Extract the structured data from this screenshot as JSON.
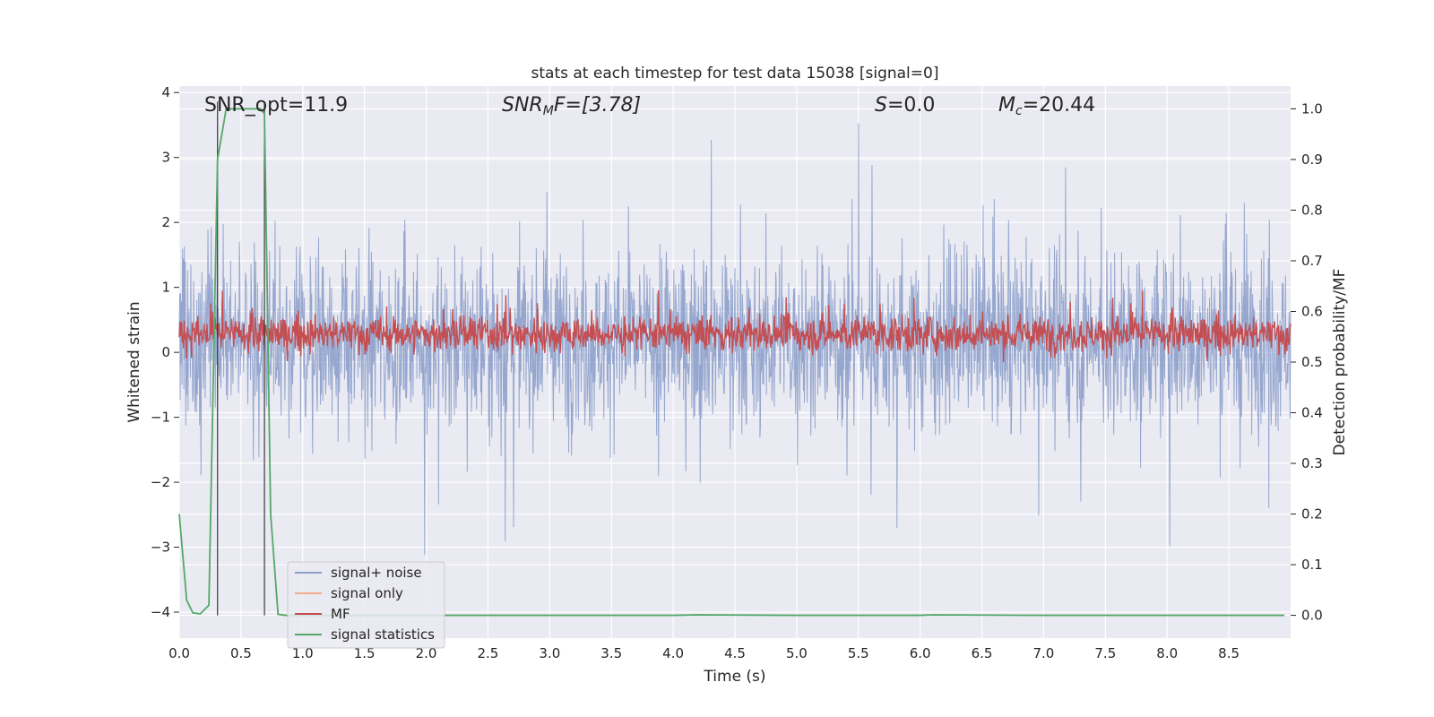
{
  "chart_data": {
    "type": "line",
    "title": "stats at each timestep for test data 15038 [signal=0]",
    "xlabel": "Time (s)",
    "ylabel": "Whitened strain",
    "y2label": "Detection probability/MF",
    "xlim": [
      0.0,
      9.0
    ],
    "ylim": [
      -4.4,
      4.1
    ],
    "y2lim": [
      -0.045,
      1.045
    ],
    "xticks": [
      "0.0",
      "0.5",
      "1.0",
      "1.5",
      "2.0",
      "2.5",
      "3.0",
      "3.5",
      "4.0",
      "4.5",
      "5.0",
      "5.5",
      "6.0",
      "6.5",
      "7.0",
      "7.5",
      "8.0",
      "8.5"
    ],
    "yticks": [
      "4",
      "3",
      "2",
      "1",
      "0",
      "−1",
      "−2",
      "−3",
      "−4"
    ],
    "y2ticks": [
      "1.0",
      "0.9",
      "0.8",
      "0.7",
      "0.6",
      "0.5",
      "0.4",
      "0.3",
      "0.2",
      "0.1",
      "0.0"
    ],
    "grid": true,
    "legend_position": "lower-left",
    "annotations": {
      "snr_opt": "SNR_opt=11.9",
      "snr_mf_label": "SNR",
      "snr_mf_sub": "M",
      "snr_mf_value": "F=[3.78]",
      "s_label": "S",
      "s_value": "=0.0",
      "mc_label": "M",
      "mc_sub": "c",
      "mc_value": "=20.44"
    },
    "vlines_x": [
      0.31,
      0.69
    ],
    "series": [
      {
        "name": "signal+ noise",
        "color": "#8da0cb",
        "axis": "left",
        "description": "noise trace, visual amplitude roughly between -2.5 and 3.5 with sparse spikes",
        "envelope": {
          "typical_low": -1.8,
          "typical_high": 2.2,
          "peak_low": -4.0,
          "peak_high": 3.7
        }
      },
      {
        "name": "signal only",
        "color": "#f2a98c",
        "axis": "left",
        "values": []
      },
      {
        "name": "MF",
        "color": "#c44e52",
        "axis": "right",
        "envelope": {
          "typical_low": 0.51,
          "typical_high": 0.6,
          "peak_high": 0.65
        }
      },
      {
        "name": "signal statistics",
        "color": "#55a868",
        "axis": "right",
        "x": [
          0.0,
          0.06,
          0.11,
          0.17,
          0.24,
          0.31,
          0.38,
          0.45,
          0.52,
          0.59,
          0.66,
          0.69,
          0.74,
          0.8,
          0.86,
          1.2,
          2.0,
          3.0,
          4.0,
          4.2,
          5.0,
          6.0,
          6.1,
          7.0,
          8.0,
          8.95
        ],
        "values": [
          0.2,
          0.03,
          0.005,
          0.003,
          0.02,
          0.9,
          1.0,
          1.0,
          1.0,
          1.0,
          1.0,
          0.99,
          0.2,
          0.002,
          0.0,
          0.0,
          0.0,
          0.0,
          0.0,
          0.001,
          0.0,
          0.0,
          0.001,
          0.0,
          0.0,
          0.0
        ]
      }
    ]
  }
}
